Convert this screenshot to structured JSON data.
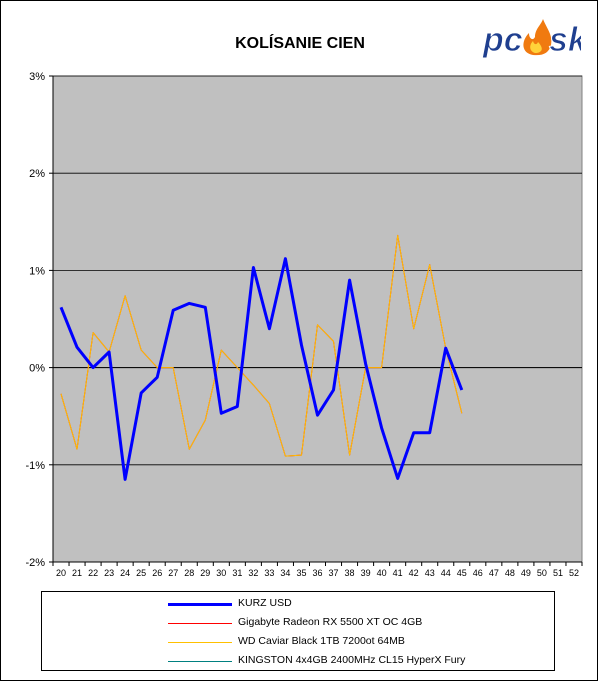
{
  "chart_data": {
    "type": "line",
    "title": "KOLÍSANIE CIEN",
    "xlabel": "",
    "ylabel": "",
    "ylim": [
      -2,
      3
    ],
    "y_ticks": [
      "3%",
      "2%",
      "1%",
      "0%",
      "-1%",
      "-2%"
    ],
    "categories": [
      "20",
      "21",
      "22",
      "23",
      "24",
      "25",
      "26",
      "27",
      "28",
      "29",
      "30",
      "31",
      "32",
      "33",
      "34",
      "35",
      "36",
      "37",
      "38",
      "39",
      "40",
      "41",
      "42",
      "43",
      "44",
      "45",
      "46",
      "47",
      "48",
      "49",
      "50",
      "51",
      "52"
    ],
    "grid": "horizontal",
    "plot_background": "#c0c0c0",
    "legend_position": "bottom",
    "series": [
      {
        "name": "KURZ USD",
        "color": "#0000ff",
        "values": [
          0.62,
          0.21,
          0.0,
          0.16,
          -1.15,
          -0.26,
          -0.1,
          0.59,
          0.66,
          0.62,
          -0.47,
          -0.4,
          1.03,
          0.4,
          1.12,
          0.23,
          -0.49,
          -0.23,
          0.9,
          0.04,
          -0.62,
          -1.14,
          -0.67,
          -0.67,
          0.2,
          -0.23,
          null,
          null,
          null,
          null,
          null,
          null,
          null
        ]
      },
      {
        "name": "Gigabyte Radeon RX 5500 XT OC 4GB",
        "color": "#ff0000",
        "values": [
          -0.27,
          -0.84,
          0.36,
          0.16,
          0.74,
          0.18,
          0.0,
          0.0,
          -0.84,
          -0.54,
          0.18,
          0.0,
          -0.18,
          -0.37,
          -0.91,
          -0.9,
          0.44,
          0.27,
          -0.9,
          0.0,
          0.0,
          1.36,
          0.4,
          1.06,
          0.2,
          -0.47,
          null,
          null,
          null,
          null,
          null,
          null,
          null
        ]
      },
      {
        "name": "WD Caviar Black 1TB 7200ot 64MB",
        "color": "#ffc000",
        "values": [
          -0.27,
          -0.84,
          0.36,
          0.16,
          0.74,
          0.18,
          0.0,
          0.0,
          -0.84,
          -0.54,
          0.18,
          0.0,
          -0.18,
          -0.37,
          -0.91,
          -0.9,
          0.44,
          0.27,
          -0.9,
          0.0,
          0.0,
          1.36,
          0.4,
          1.06,
          0.2,
          -0.47,
          null,
          null,
          null,
          null,
          null,
          null,
          null
        ]
      },
      {
        "name": "KINGSTON 4x4GB 2400MHz CL15 HyperX Fury",
        "color": "#008080",
        "values": [
          null,
          null,
          null,
          null,
          null,
          null,
          null,
          null,
          null,
          null,
          null,
          null,
          null,
          null,
          null,
          null,
          null,
          null,
          null,
          null,
          null,
          null,
          null,
          null,
          null,
          null,
          null,
          null,
          null,
          null,
          null,
          null,
          null
        ]
      }
    ]
  },
  "logo": {
    "text_left": "pc",
    "text_right": "sk"
  }
}
